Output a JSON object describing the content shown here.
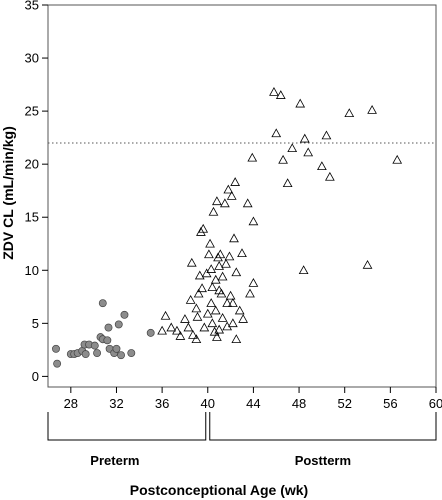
{
  "chart_data": {
    "type": "scatter",
    "xlabel": "Postconceptional Age (wk)",
    "ylabel": "ZDV CL (mL/min/kg)",
    "xlim": [
      26,
      60
    ],
    "ylim": [
      -1,
      35
    ],
    "xticks": [
      28,
      32,
      36,
      40,
      44,
      48,
      52,
      56,
      60
    ],
    "yticks": [
      0,
      5,
      10,
      15,
      20,
      25,
      30,
      35
    ],
    "grid": false,
    "reference_line": {
      "y": 22,
      "style": "dotted"
    },
    "groups": [
      {
        "label": "Preterm",
        "x_range": [
          26,
          40
        ]
      },
      {
        "label": "Postterm",
        "x_range": [
          40,
          60
        ]
      }
    ],
    "series": [
      {
        "marker": "filled-circle",
        "color": "#8c8c8c",
        "points": [
          [
            26.7,
            2.6
          ],
          [
            26.8,
            1.2
          ],
          [
            28.0,
            2.1
          ],
          [
            28.3,
            2.1
          ],
          [
            28.6,
            2.2
          ],
          [
            29.0,
            2.4
          ],
          [
            29.3,
            2.1
          ],
          [
            29.2,
            3.0
          ],
          [
            29.6,
            3.0
          ],
          [
            30.1,
            2.9
          ],
          [
            30.3,
            2.2
          ],
          [
            30.6,
            3.7
          ],
          [
            30.8,
            3.5
          ],
          [
            30.8,
            6.9
          ],
          [
            31.2,
            3.4
          ],
          [
            31.3,
            4.6
          ],
          [
            31.4,
            2.6
          ],
          [
            31.8,
            2.2
          ],
          [
            32.0,
            2.6
          ],
          [
            32.2,
            4.9
          ],
          [
            32.4,
            2.0
          ],
          [
            32.7,
            5.8
          ],
          [
            33.3,
            2.2
          ],
          [
            35.0,
            4.1
          ]
        ]
      },
      {
        "marker": "open-triangle",
        "color": "#000000",
        "points": [
          [
            36.0,
            4.3
          ],
          [
            36.3,
            5.7
          ],
          [
            36.8,
            4.6
          ],
          [
            37.3,
            4.3
          ],
          [
            37.6,
            3.8
          ],
          [
            38.0,
            5.4
          ],
          [
            38.3,
            4.6
          ],
          [
            38.5,
            7.2
          ],
          [
            38.6,
            10.7
          ],
          [
            38.7,
            3.9
          ],
          [
            39.0,
            3.5
          ],
          [
            39.0,
            6.4
          ],
          [
            39.1,
            5.6
          ],
          [
            39.2,
            7.8
          ],
          [
            39.3,
            9.5
          ],
          [
            39.4,
            13.6
          ],
          [
            39.5,
            8.3
          ],
          [
            39.6,
            13.9
          ],
          [
            39.7,
            4.6
          ],
          [
            39.9,
            9.7
          ],
          [
            40.0,
            5.9
          ],
          [
            40.1,
            11.5
          ],
          [
            40.2,
            12.5
          ],
          [
            40.3,
            10.1
          ],
          [
            40.3,
            6.9
          ],
          [
            40.4,
            8.4
          ],
          [
            40.4,
            5.0
          ],
          [
            40.5,
            15.5
          ],
          [
            40.6,
            4.2
          ],
          [
            40.7,
            9.1
          ],
          [
            40.7,
            6.2
          ],
          [
            40.8,
            3.7
          ],
          [
            40.8,
            16.5
          ],
          [
            40.9,
            11.2
          ],
          [
            41.0,
            10.4
          ],
          [
            41.0,
            8.1
          ],
          [
            41.0,
            4.4
          ],
          [
            41.1,
            11.5
          ],
          [
            41.2,
            7.8
          ],
          [
            41.3,
            9.4
          ],
          [
            41.3,
            5.5
          ],
          [
            41.5,
            16.3
          ],
          [
            41.6,
            10.6
          ],
          [
            41.7,
            6.9
          ],
          [
            41.7,
            4.7
          ],
          [
            41.8,
            17.6
          ],
          [
            41.9,
            11.3
          ],
          [
            42.0,
            7.6
          ],
          [
            42.1,
            17.0
          ],
          [
            42.2,
            6.9
          ],
          [
            42.2,
            5.0
          ],
          [
            42.3,
            13.0
          ],
          [
            42.4,
            18.3
          ],
          [
            42.5,
            9.8
          ],
          [
            42.5,
            3.5
          ],
          [
            42.8,
            6.2
          ],
          [
            43.0,
            11.6
          ],
          [
            43.1,
            5.4
          ],
          [
            43.5,
            16.3
          ],
          [
            43.7,
            7.8
          ],
          [
            43.9,
            20.6
          ],
          [
            44.0,
            14.6
          ],
          [
            44.0,
            8.8
          ],
          [
            45.8,
            26.8
          ],
          [
            46.0,
            22.9
          ],
          [
            46.4,
            26.5
          ],
          [
            46.6,
            20.4
          ],
          [
            47.0,
            18.2
          ],
          [
            47.4,
            21.5
          ],
          [
            48.1,
            25.7
          ],
          [
            48.4,
            10.0
          ],
          [
            48.5,
            22.4
          ],
          [
            48.8,
            21.1
          ],
          [
            50.0,
            19.8
          ],
          [
            50.4,
            22.7
          ],
          [
            50.7,
            18.8
          ],
          [
            52.4,
            24.8
          ],
          [
            54.0,
            10.5
          ],
          [
            54.4,
            25.1
          ],
          [
            56.6,
            20.4
          ]
        ]
      }
    ]
  }
}
